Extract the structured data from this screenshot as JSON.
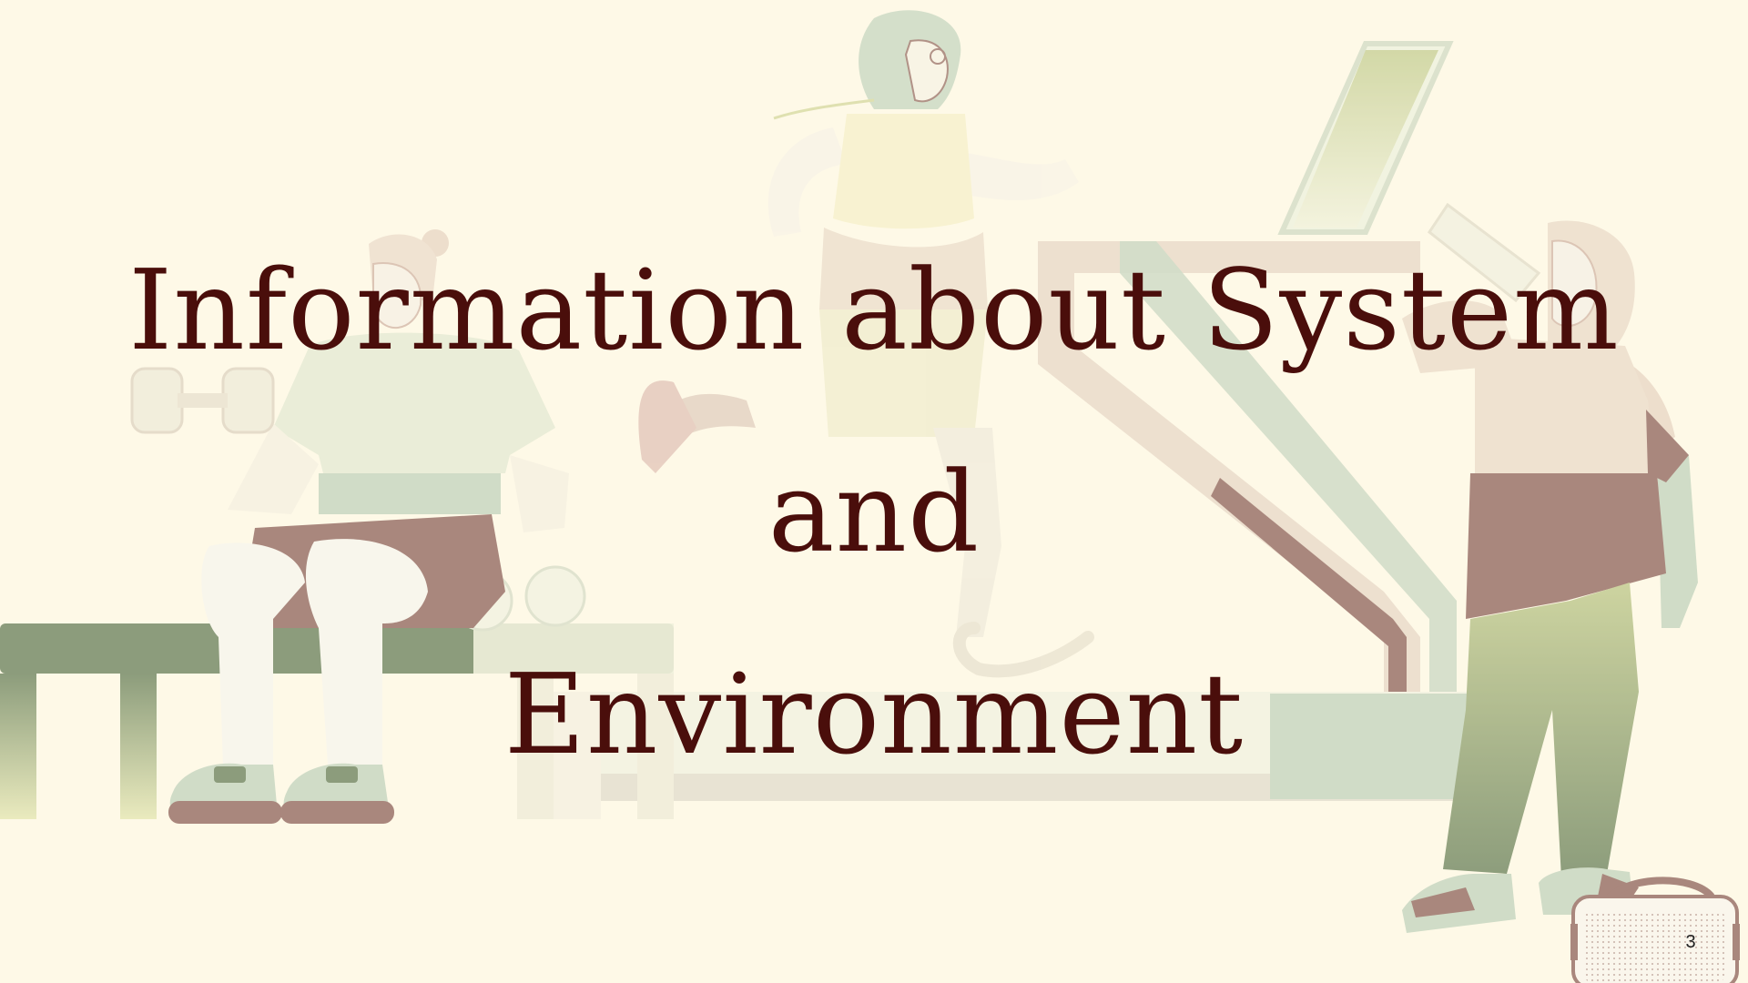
{
  "slide": {
    "title_lines": [
      "Information about System",
      "and",
      "Environment"
    ],
    "page_number": "3"
  },
  "colors": {
    "background": "#fef9e7",
    "title_text": "#4a0e0b",
    "maroon": "#7c4a44",
    "dark_green": "#4f6b42",
    "sage": "#b7cdb6",
    "olive_light": "#c9cf8a",
    "cream_white": "#f5f4ef",
    "skin_beige": "#e6d6c4"
  },
  "illustrations": [
    "seated-person-with-dumbbells",
    "bench",
    "runner-with-prosthetic-leg",
    "treadmill",
    "person-drinking-from-bottle",
    "boombox"
  ]
}
